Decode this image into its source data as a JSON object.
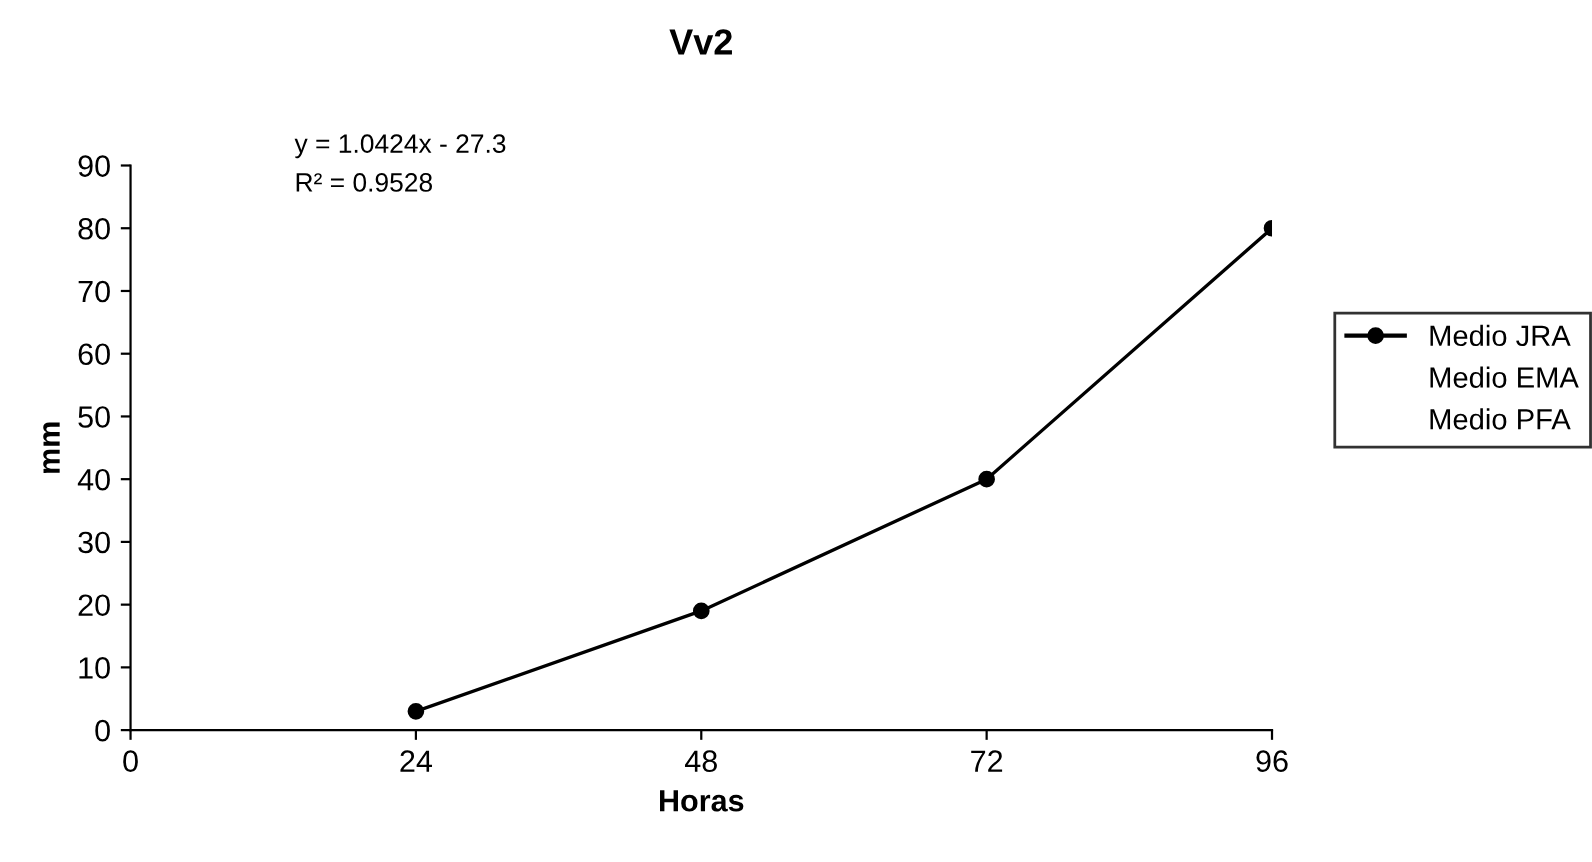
{
  "chart_data": {
    "type": "line",
    "title": "Vv2",
    "xlabel": "Horas",
    "ylabel": "mm",
    "annotations": [
      "y = 1.0424x - 27.3",
      "R² = 0.9528"
    ],
    "x": [
      24,
      48,
      72,
      96
    ],
    "series": [
      {
        "name": "Medio JRA",
        "color": "#000000",
        "values": [
          3,
          19,
          40,
          80
        ],
        "marker": "circle"
      },
      {
        "name": "Medio EMA",
        "values": [
          null,
          null,
          null,
          null
        ],
        "marker": "none"
      },
      {
        "name": "Medio PFA",
        "values": [
          null,
          null,
          null,
          null
        ],
        "marker": "none"
      }
    ],
    "xlim": [
      0,
      96
    ],
    "xticks": [
      0,
      24,
      48,
      72,
      96
    ],
    "ylim": [
      0,
      90
    ],
    "yticks": [
      0,
      10,
      20,
      30,
      40,
      50,
      60,
      70,
      80,
      90
    ],
    "grid": false,
    "legend": "right",
    "line_style": "solid"
  }
}
